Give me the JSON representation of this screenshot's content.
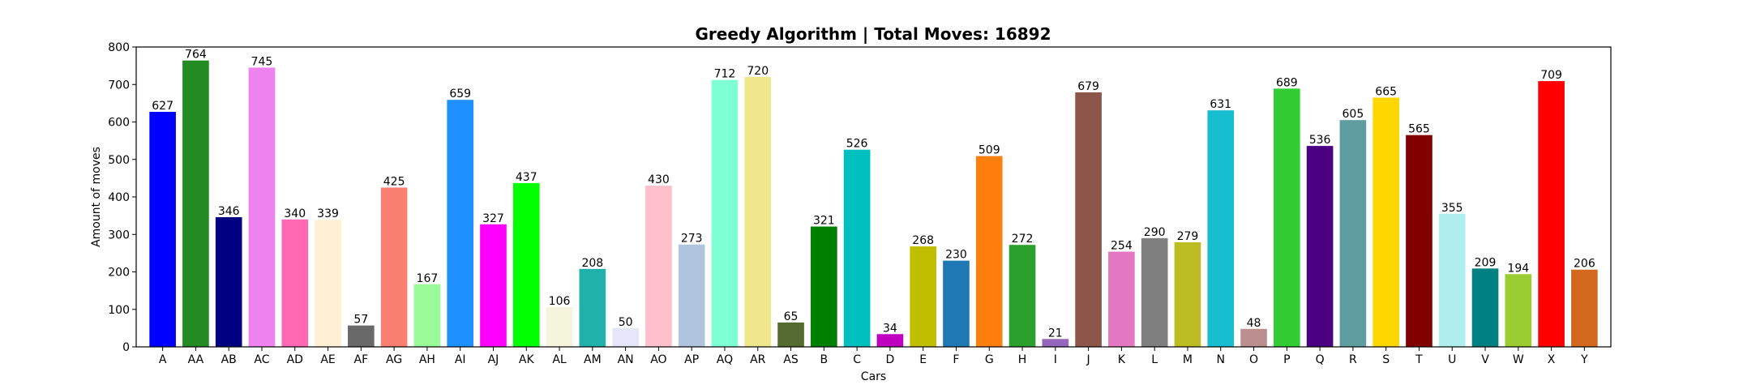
{
  "chart_data": {
    "type": "bar",
    "title": "Greedy Algorithm | Total Moves: 16892",
    "xlabel": "Cars",
    "ylabel": "Amount of moves",
    "ylim": [
      0,
      800
    ],
    "yticks": [
      0,
      100,
      200,
      300,
      400,
      500,
      600,
      700,
      800
    ],
    "grid": false,
    "legend": "none",
    "categories": [
      "A",
      "AA",
      "AB",
      "AC",
      "AD",
      "AE",
      "AF",
      "AG",
      "AH",
      "AI",
      "AJ",
      "AK",
      "AL",
      "AM",
      "AN",
      "AO",
      "AP",
      "AQ",
      "AR",
      "AS",
      "B",
      "C",
      "D",
      "E",
      "F",
      "G",
      "H",
      "I",
      "J",
      "K",
      "L",
      "M",
      "N",
      "O",
      "P",
      "Q",
      "R",
      "S",
      "T",
      "U",
      "V",
      "W",
      "X",
      "Y"
    ],
    "values": [
      627,
      764,
      346,
      745,
      340,
      339,
      57,
      425,
      167,
      659,
      327,
      437,
      106,
      208,
      50,
      430,
      273,
      712,
      720,
      65,
      321,
      526,
      34,
      268,
      230,
      509,
      272,
      21,
      679,
      254,
      290,
      279,
      631,
      48,
      689,
      536,
      605,
      665,
      565,
      355,
      209,
      194,
      709,
      206
    ],
    "colors": [
      "#0000ff",
      "#228b22",
      "#000080",
      "#ee82ee",
      "#ff69b4",
      "#ffefd5",
      "#696969",
      "#fa8072",
      "#98fb98",
      "#1e90ff",
      "#ff00ff",
      "#00ff00",
      "#f5f5dc",
      "#20b2aa",
      "#e6e6fa",
      "#ffc0cb",
      "#b0c4de",
      "#7fffd4",
      "#f0e68c",
      "#556b2f",
      "#008000",
      "#00bfbf",
      "#bf00bf",
      "#bfbf00",
      "#1f77b4",
      "#ff7f0e",
      "#2ca02c",
      "#9467bd",
      "#8c564b",
      "#e377c2",
      "#7f7f7f",
      "#bcbd22",
      "#17becf",
      "#bc8f8f",
      "#32cd32",
      "#4b0082",
      "#5f9ea0",
      "#ffd700",
      "#800000",
      "#afeeee",
      "#008080",
      "#9acd32",
      "#ff0000",
      "#d2691e"
    ]
  }
}
